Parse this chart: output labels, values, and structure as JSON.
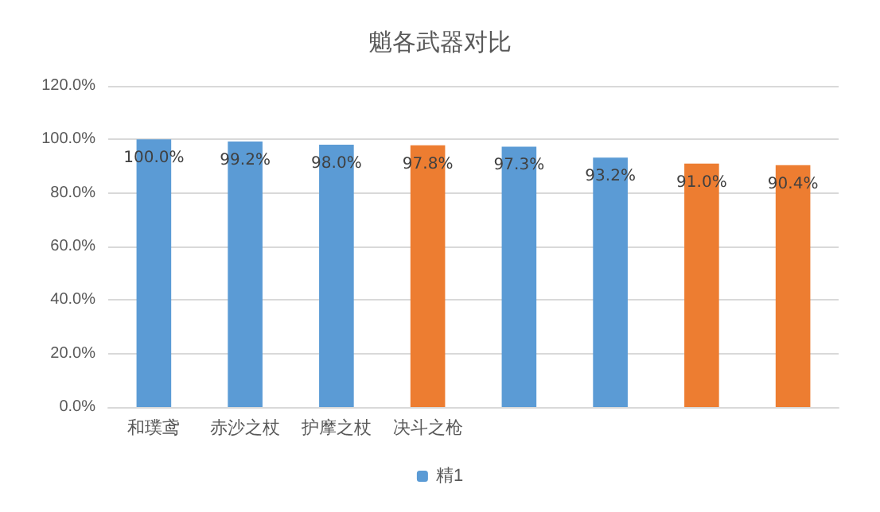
{
  "chart_data": {
    "type": "bar",
    "title": "魈各武器对比",
    "categories": [
      "和璞鸢",
      "赤沙之杖",
      "护摩之杖",
      "决斗之枪",
      null,
      null,
      null,
      null
    ],
    "series": [
      {
        "name": "精1",
        "color": "#5b9bd5",
        "values": [
          100,
          99.2,
          98,
          null,
          97.3,
          93.2,
          null,
          null
        ],
        "value_labels": [
          "100.0%",
          "99.2%",
          "98.0%",
          null,
          "97.3%",
          "93.2%",
          null,
          null
        ]
      },
      {
        "color": "#ed7d31",
        "values": [
          null,
          null,
          null,
          97.8,
          null,
          null,
          91,
          90.4
        ],
        "value_labels": [
          null,
          null,
          null,
          "97.8%",
          null,
          null,
          "91.0%",
          "90.4%"
        ]
      }
    ],
    "ylim": [
      0,
      120
    ],
    "yticks": [
      {
        "value": 0,
        "label": "0.0%"
      },
      {
        "value": 20,
        "label": "20.0%"
      },
      {
        "value": 40,
        "label": "40.0%"
      },
      {
        "value": 60,
        "label": "60.0%"
      },
      {
        "value": 80,
        "label": "80.0%"
      },
      {
        "value": 100,
        "label": "100.0%"
      },
      {
        "value": 120,
        "label": "120.0%"
      }
    ],
    "grid": "y",
    "legend": "bottom"
  }
}
